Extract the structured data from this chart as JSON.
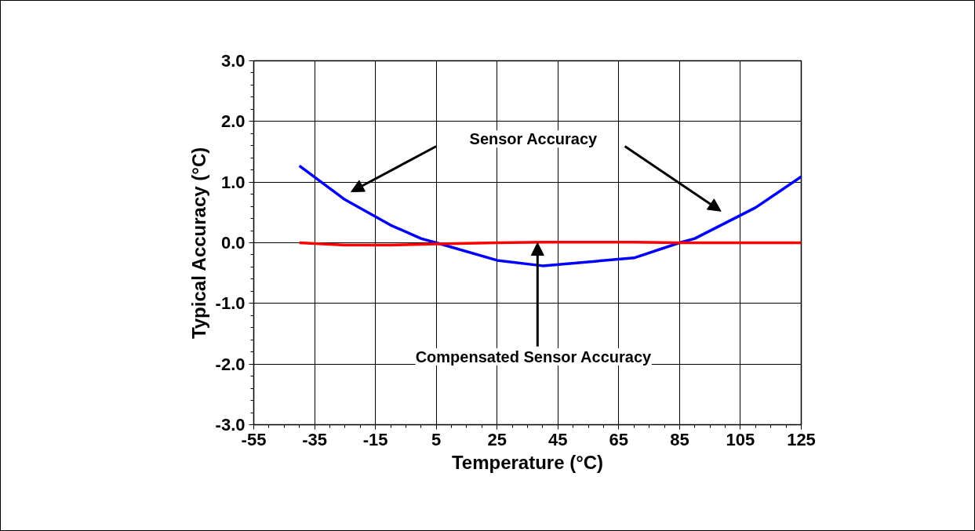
{
  "chart_data": {
    "type": "line",
    "xlabel": "Temperature (°C)",
    "ylabel": "Typical Accuracy (°C)",
    "series": [
      {
        "color": "#0000ff",
        "x": [
          -40,
          -25,
          -10,
          0,
          5,
          25,
          40,
          70,
          85,
          90,
          110,
          125
        ],
        "values": [
          1.27,
          0.71,
          0.29,
          0.07,
          0.0,
          -0.29,
          -0.38,
          -0.25,
          0.0,
          0.07,
          0.58,
          1.09
        ]
      },
      {
        "color": "#ff0000",
        "x": [
          -40,
          -25,
          -10,
          5,
          25,
          40,
          70,
          85,
          125
        ],
        "values": [
          0.0,
          -0.04,
          -0.04,
          -0.02,
          0.0,
          0.01,
          0.01,
          0.0,
          0.0
        ]
      }
    ],
    "xlim": [
      -55,
      125
    ],
    "xticks": [
      -55,
      -35,
      -15,
      5,
      25,
      45,
      65,
      85,
      105,
      125
    ],
    "ylim": [
      -3,
      3
    ],
    "yticks": [
      {
        "value": -3,
        "label": "-3.0"
      },
      {
        "value": -2,
        "label": "-2.0"
      },
      {
        "value": -1,
        "label": "-1.0"
      },
      {
        "value": 0,
        "label": "0.0"
      },
      {
        "value": 1,
        "label": "1.0"
      },
      {
        "value": 2,
        "label": "2.0"
      },
      {
        "value": 3,
        "label": "3.0"
      }
    ],
    "annotations": [
      "Sensor Accuracy",
      {
        "text": "Compensated Sensor Accuracy",
        "x": 38.3,
        "y": 0.0
      }
    ],
    "grid": true,
    "marker": "none",
    "line_style": "solid"
  }
}
